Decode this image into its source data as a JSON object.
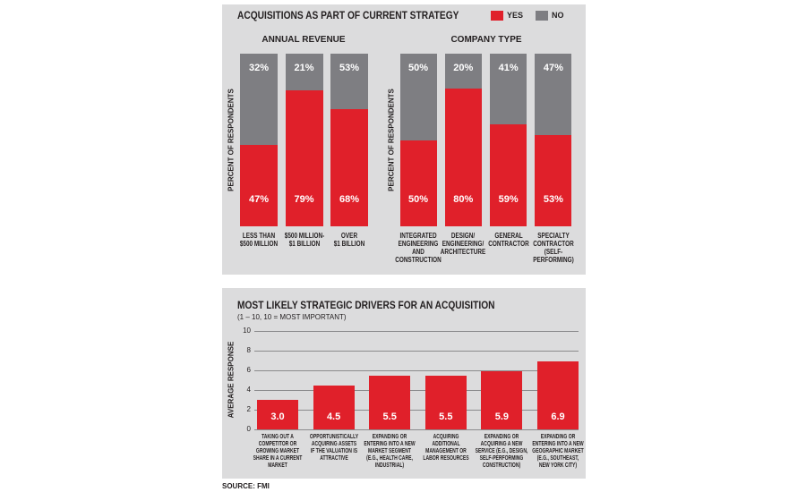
{
  "chart_data": [
    {
      "type": "split-bar",
      "title": "ACQUISITIONS AS PART OF CURRENT STRATEGY",
      "subtitle": "ANNUAL REVENUE",
      "ylabel": "PERCENT OF RESPONDENTS",
      "categories": [
        "LESS THAN\n$500 MILLION",
        "$500 MILLION-\n$1 BILLION",
        "OVER\n$1 BILLION"
      ],
      "series": [
        {
          "name": "YES",
          "color": "#e0202a",
          "values": [
            47,
            79,
            68
          ],
          "value_labels": [
            "47%",
            "79%",
            "68%"
          ]
        },
        {
          "name": "NO",
          "color": "#7e7e82",
          "values": [
            32,
            21,
            53
          ],
          "value_labels": [
            "32%",
            "21%",
            "53%"
          ]
        }
      ],
      "ylim": [
        0,
        100
      ],
      "legend": "top-right"
    },
    {
      "type": "split-bar",
      "subtitle": "COMPANY TYPE",
      "ylabel": "PERCENT OF RESPONDENTS",
      "categories": [
        "INTEGRATED\nENGINEERING\nAND\nCONSTRUCTION",
        "DESIGN/\nENGINEERING/\nARCHITECTURE",
        "GENERAL\nCONTRACTOR",
        "SPECIALTY\nCONTRACTOR\n(SELF-\nPERFORMING)"
      ],
      "series": [
        {
          "color": "#e0202a",
          "values": [
            50,
            80,
            59,
            53
          ],
          "value_labels": [
            "50%",
            "80%",
            "59%",
            "53%"
          ]
        },
        {
          "color": "#7e7e82",
          "values": [
            50,
            20,
            41,
            47
          ],
          "value_labels": [
            "50%",
            "20%",
            "41%",
            "47%"
          ]
        }
      ],
      "ylim": [
        0,
        100
      ]
    },
    {
      "type": "bar",
      "title": "MOST LIKELY STRATEGIC DRIVERS FOR AN ACQUISITION",
      "subtitle": "(1 – 10, 10 = MOST IMPORTANT)",
      "ylabel": "AVERAGE RESPONSE",
      "categories": [
        "TAKING OUT A\nCOMPETITOR OR\nGROWING MARKET\nSHARE IN A CURRENT\nMARKET",
        "OPPORTUNISTICALLY\nACQUIRING ASSETS\nIF THE VALUATION IS\nATTRACTIVE",
        "EXPANDING OR\nENTERING INTO A NEW\nMARKET SEGMENT\n(E.G., HEALTH CARE,\nINDUSTRIAL)",
        "ACQUIRING\nADDITIONAL\nMANAGEMENT OR\nLABOR RESOURCES",
        "EXPANDING OR\nACQUIRING A NEW\nSERVICE (E.G., DESIGN,\nSELF-PERFORMING\nCONSTRUCTION)",
        "EXPANDING OR\nENTERING INTO A NEW\nGEOGRAPHIC MARKET\n(E.G., SOUTHEAST,\nNEW YORK CITY)"
      ],
      "values": [
        3.0,
        4.5,
        5.5,
        5.5,
        5.9,
        6.9
      ],
      "value_labels": [
        "3.0",
        "4.5",
        "5.5",
        "5.5",
        "5.9",
        "6.9"
      ],
      "color": "#e0202a",
      "ylim": [
        0,
        10
      ],
      "yticks": [
        0,
        2,
        4,
        6,
        8,
        10
      ],
      "grid": true
    }
  ],
  "source": "SOURCE: FMI"
}
